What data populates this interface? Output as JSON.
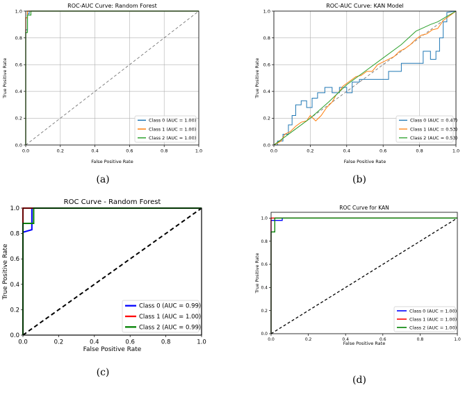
{
  "chart_data": [
    {
      "id": "a",
      "type": "line",
      "title": "ROC-AUC Curve: Random Forest",
      "xlabel": "False Positive Rate",
      "ylabel": "True Positive Rate",
      "xlim": [
        0,
        1
      ],
      "ylim": [
        0,
        1
      ],
      "xticks": [
        "0.0",
        "0.2",
        "0.4",
        "0.6",
        "0.8",
        "1.0"
      ],
      "yticks": [
        "0.0",
        "0.2",
        "0.4",
        "0.6",
        "0.8",
        "1.0"
      ],
      "grid": true,
      "legend_position": "lower-right",
      "caption": "(a)",
      "series": [
        {
          "name": "Class 0 (AUC = 1.00)",
          "color": "#1f77b4",
          "x": [
            0,
            0,
            0.01,
            0.01,
            0.02,
            0.02,
            1
          ],
          "y": [
            0,
            0.86,
            0.86,
            0.98,
            0.98,
            1,
            1
          ]
        },
        {
          "name": "Class 1 (AUC = 1.00)",
          "color": "#ff7f0e",
          "x": [
            0,
            0,
            0.01,
            0.01,
            1
          ],
          "y": [
            0,
            0.95,
            0.95,
            1,
            1
          ]
        },
        {
          "name": "Class 2 (AUC = 1.00)",
          "color": "#2ca02c",
          "x": [
            0,
            0,
            0.01,
            0.01,
            0.03,
            0.03,
            1
          ],
          "y": [
            0,
            0.84,
            0.84,
            0.97,
            0.97,
            1,
            1
          ]
        }
      ]
    },
    {
      "id": "b",
      "type": "line",
      "title": "ROC-AUC Curve: KAN Model",
      "xlabel": "False Positive Rate",
      "ylabel": "True Positive Rate",
      "xlim": [
        0,
        1
      ],
      "ylim": [
        0,
        1
      ],
      "xticks": [
        "0.0",
        "0.2",
        "0.4",
        "0.6",
        "0.8",
        "1.0"
      ],
      "yticks": [
        "0.0",
        "0.2",
        "0.4",
        "0.6",
        "0.8",
        "1.0"
      ],
      "grid": true,
      "legend_position": "lower-right",
      "caption": "(b)",
      "series": [
        {
          "name": "Class 0 (AUC = 0.47)",
          "color": "#1f77b4",
          "x": [
            0,
            0.02,
            0.02,
            0.05,
            0.05,
            0.08,
            0.08,
            0.1,
            0.1,
            0.12,
            0.12,
            0.15,
            0.15,
            0.18,
            0.18,
            0.21,
            0.21,
            0.24,
            0.24,
            0.28,
            0.28,
            0.32,
            0.32,
            0.36,
            0.36,
            0.4,
            0.4,
            0.43,
            0.43,
            0.47,
            0.47,
            0.55,
            0.55,
            0.63,
            0.63,
            0.7,
            0.7,
            0.77,
            0.77,
            0.82,
            0.82,
            0.86,
            0.86,
            0.89,
            0.89,
            0.91,
            0.91,
            0.93,
            0.93,
            0.95,
            0.95,
            1.0
          ],
          "y": [
            0,
            0,
            0.03,
            0.03,
            0.08,
            0.08,
            0.15,
            0.15,
            0.22,
            0.22,
            0.3,
            0.3,
            0.33,
            0.33,
            0.28,
            0.28,
            0.35,
            0.35,
            0.39,
            0.39,
            0.43,
            0.43,
            0.39,
            0.39,
            0.43,
            0.43,
            0.39,
            0.39,
            0.47,
            0.47,
            0.49,
            0.49,
            0.49,
            0.49,
            0.55,
            0.55,
            0.61,
            0.61,
            0.61,
            0.61,
            0.7,
            0.7,
            0.64,
            0.64,
            0.7,
            0.7,
            0.8,
            0.8,
            0.92,
            0.92,
            0.99,
            1.0
          ]
        },
        {
          "name": "Class 1 (AUC = 0.53)",
          "color": "#ff7f0e",
          "x": [
            0,
            0.04,
            0.06,
            0.09,
            0.12,
            0.15,
            0.18,
            0.2,
            0.23,
            0.26,
            0.29,
            0.32,
            0.34,
            0.36,
            0.38,
            0.4,
            0.42,
            0.45,
            0.48,
            0.51,
            0.54,
            0.57,
            0.6,
            0.63,
            0.66,
            0.69,
            0.72,
            0.75,
            0.78,
            0.81,
            0.84,
            0.87,
            0.9,
            0.93,
            0.96,
            1.0
          ],
          "y": [
            0,
            0.03,
            0.08,
            0.1,
            0.14,
            0.17,
            0.18,
            0.22,
            0.18,
            0.22,
            0.28,
            0.32,
            0.37,
            0.4,
            0.44,
            0.46,
            0.48,
            0.51,
            0.52,
            0.55,
            0.55,
            0.6,
            0.62,
            0.64,
            0.66,
            0.7,
            0.72,
            0.75,
            0.79,
            0.82,
            0.83,
            0.86,
            0.87,
            0.93,
            0.96,
            1.0
          ]
        },
        {
          "name": "Class 2 (AUC = 0.53)",
          "color": "#2ca02c",
          "x": [
            0,
            0.1,
            0.2,
            0.3,
            0.4,
            0.5,
            0.6,
            0.7,
            0.78,
            0.86,
            0.9,
            0.95,
            1.0
          ],
          "y": [
            0,
            0.1,
            0.2,
            0.32,
            0.45,
            0.55,
            0.65,
            0.75,
            0.85,
            0.9,
            0.92,
            0.96,
            1.0
          ]
        }
      ]
    },
    {
      "id": "c",
      "type": "line",
      "title": "ROC Curve - Random Forest",
      "xlabel": "False Positive Rate",
      "ylabel": "True Positive Rate",
      "xlim": [
        0,
        1
      ],
      "ylim": [
        0,
        1
      ],
      "xticks": [
        "0.0",
        "0.2",
        "0.4",
        "0.6",
        "0.8",
        "1.0"
      ],
      "yticks": [
        "0.0",
        "0.2",
        "0.4",
        "0.6",
        "0.8",
        "1.0"
      ],
      "grid": false,
      "legend_position": "lower-right",
      "caption": "(c)",
      "series": [
        {
          "name": "Class 0 (AUC = 0.99)",
          "color": "#0000ff",
          "x": [
            0,
            0,
            0.05,
            0.05,
            1
          ],
          "y": [
            0,
            0.81,
            0.83,
            1,
            1
          ]
        },
        {
          "name": "Class 1 (AUC = 1.00)",
          "color": "#ff0000",
          "x": [
            0,
            0,
            1
          ],
          "y": [
            0,
            1,
            1
          ]
        },
        {
          "name": "Class 2 (AUC = 0.99)",
          "color": "#008000",
          "x": [
            0,
            0,
            0.06,
            0.06,
            1
          ],
          "y": [
            0,
            0.88,
            0.88,
            1,
            1
          ]
        }
      ]
    },
    {
      "id": "d",
      "type": "line",
      "title": "ROC Curve for KAN",
      "xlabel": "False Positive Rate",
      "ylabel": "True Positive Rate",
      "xlim": [
        0,
        1
      ],
      "ylim": [
        0,
        1.05
      ],
      "xticks": [
        "0.0",
        "0.2",
        "0.4",
        "0.6",
        "0.8",
        "1.0"
      ],
      "yticks": [
        "0.0",
        "0.2",
        "0.4",
        "0.6",
        "0.8",
        "1.0"
      ],
      "grid": false,
      "legend_position": "lower-right",
      "caption": "(d)",
      "series": [
        {
          "name": "Class 0 (AUC = 1.00)",
          "color": "#0000ff",
          "x": [
            0,
            0,
            0.06,
            0.06,
            1
          ],
          "y": [
            0,
            0.98,
            0.98,
            1,
            1
          ]
        },
        {
          "name": "Class 1 (AUC = 1.00)",
          "color": "#ff0000",
          "x": [
            0,
            0,
            1
          ],
          "y": [
            0,
            1,
            1
          ]
        },
        {
          "name": "Class 2 (AUC = 1.00)",
          "color": "#008000",
          "x": [
            0,
            0,
            0.02,
            0.02,
            1
          ],
          "y": [
            0,
            0.88,
            0.88,
            1,
            1
          ]
        }
      ]
    }
  ]
}
